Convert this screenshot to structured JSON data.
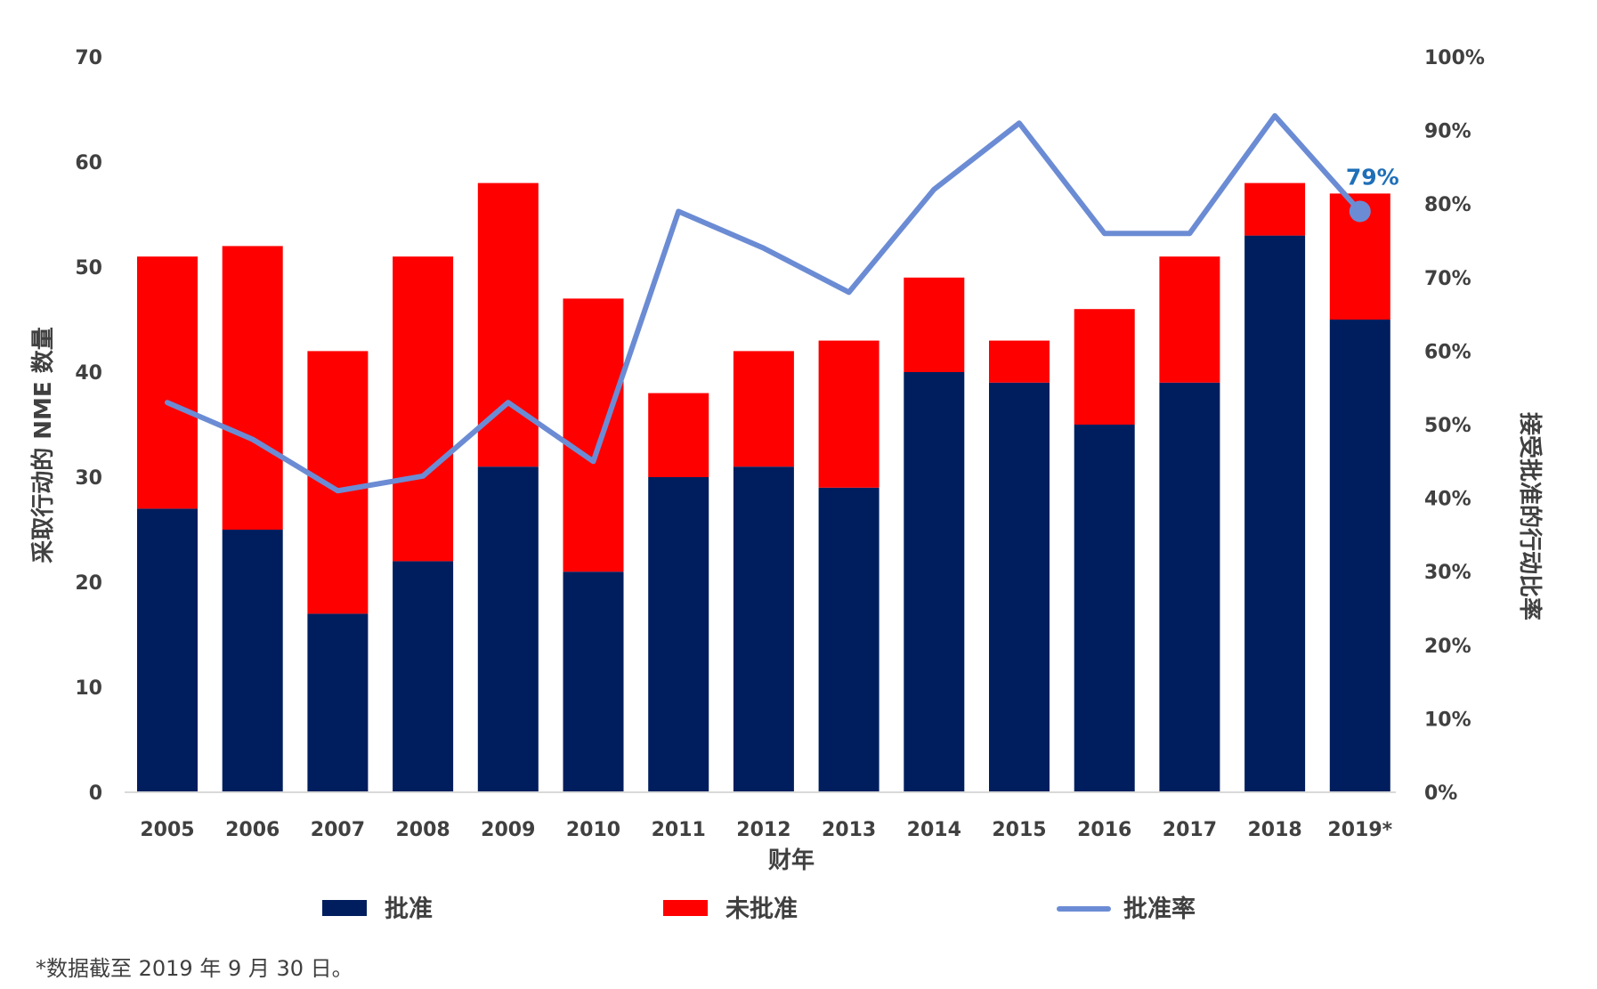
{
  "colors": {
    "approved": "#001E5E",
    "not_approved": "#FF0000",
    "rate": "#6B8CD4",
    "rate_label": "#1F6FB8",
    "axis_text": "#404040"
  },
  "chart_data": {
    "type": "bar",
    "stacked": true,
    "categories": [
      "2005",
      "2006",
      "2007",
      "2008",
      "2009",
      "2010",
      "2011",
      "2012",
      "2013",
      "2014",
      "2015",
      "2016",
      "2017",
      "2018",
      "2019*"
    ],
    "series": [
      {
        "name": "批准",
        "axis": "left",
        "values": [
          27,
          25,
          17,
          22,
          31,
          21,
          30,
          31,
          29,
          40,
          39,
          35,
          39,
          53,
          45
        ]
      },
      {
        "name": "未批准",
        "axis": "left",
        "values": [
          24,
          27,
          25,
          29,
          27,
          26,
          8,
          11,
          14,
          9,
          4,
          11,
          12,
          5,
          12
        ]
      },
      {
        "name": "批准率",
        "type": "line",
        "axis": "right",
        "values": [
          53,
          48,
          41,
          43,
          53,
          45,
          79,
          74,
          68,
          82,
          91,
          76,
          76,
          92,
          79
        ]
      }
    ],
    "xlabel": "财年",
    "ylabel": "采取行动的 NME 数量",
    "y2label": "接受批准的行动比率",
    "ylim": [
      0,
      70
    ],
    "y2lim": [
      0,
      100
    ],
    "yticks": [
      "0",
      "10",
      "20",
      "30",
      "40",
      "50",
      "60",
      "70"
    ],
    "y2ticks": [
      "0%",
      "10%",
      "20%",
      "30%",
      "40%",
      "50%",
      "60%",
      "70%",
      "80%",
      "90%",
      "100%"
    ],
    "annotation": "79%",
    "legend_position": "bottom",
    "grid": false
  },
  "footnote": "*数据截至 2019 年 9 月 30 日。"
}
